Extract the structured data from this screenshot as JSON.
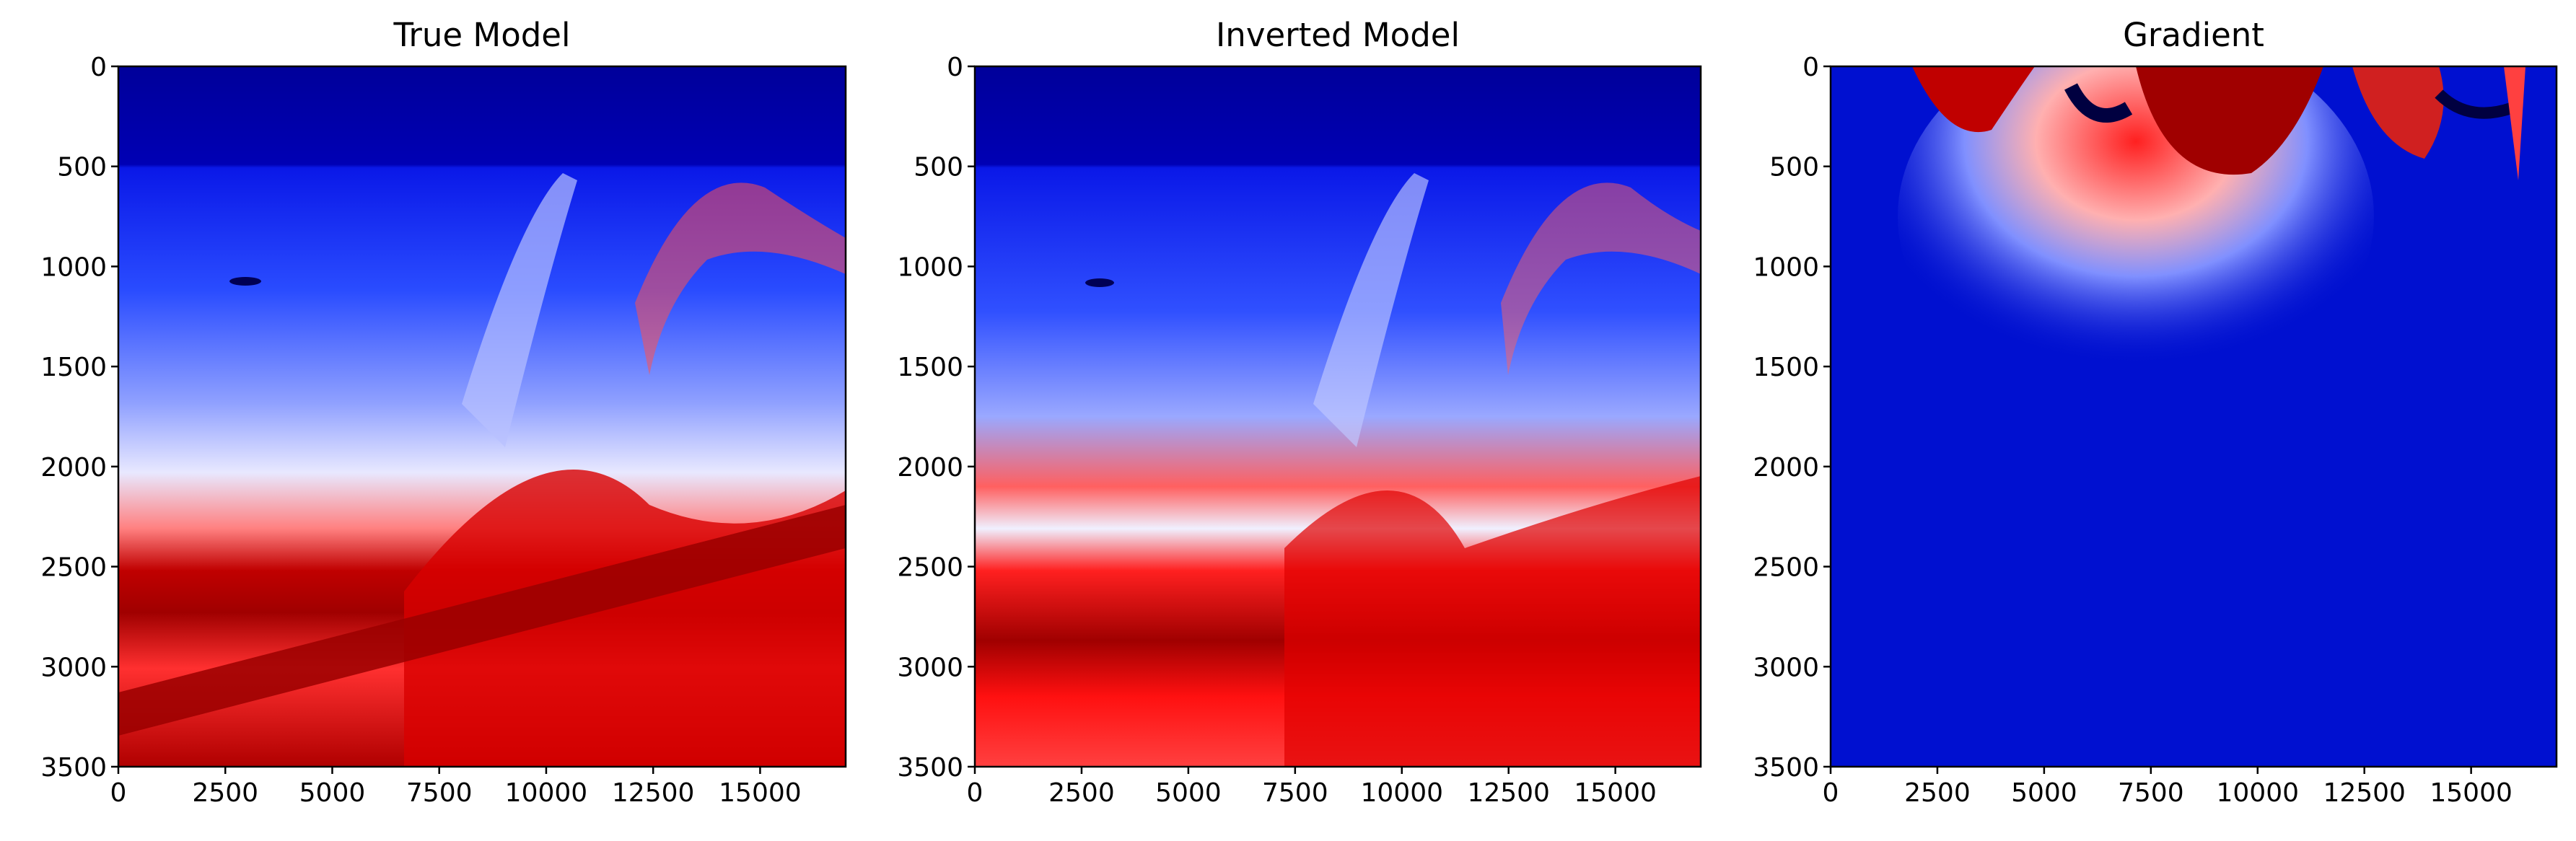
{
  "chart_data": [
    {
      "type": "heatmap",
      "title": "True Model",
      "colormap": "seismic",
      "xlim": [
        0,
        17000
      ],
      "ylim": [
        3500,
        0
      ],
      "xticks": [
        0,
        2500,
        5000,
        7500,
        10000,
        12500,
        15000
      ],
      "yticks": [
        0,
        500,
        1000,
        1500,
        2000,
        2500,
        3000,
        3500
      ],
      "xtick_labels": [
        "0",
        "2500",
        "5000",
        "7500",
        "10000",
        "12500",
        "15000"
      ],
      "ytick_labels": [
        "0",
        "500",
        "1000",
        "1500",
        "2000",
        "2500",
        "3000",
        "3500"
      ],
      "water_depth": 500
    },
    {
      "type": "heatmap",
      "title": "Inverted Model",
      "colormap": "seismic",
      "xlim": [
        0,
        17000
      ],
      "ylim": [
        3500,
        0
      ],
      "xticks": [
        0,
        2500,
        5000,
        7500,
        10000,
        12500,
        15000
      ],
      "yticks": [
        0,
        500,
        1000,
        1500,
        2000,
        2500,
        3000,
        3500
      ],
      "xtick_labels": [
        "0",
        "2500",
        "5000",
        "7500",
        "10000",
        "12500",
        "15000"
      ],
      "ytick_labels": [
        "0",
        "500",
        "1000",
        "1500",
        "2000",
        "2500",
        "3000",
        "3500"
      ],
      "water_depth": 500
    },
    {
      "type": "heatmap",
      "title": "Gradient",
      "colormap": "seismic",
      "xlim": [
        0,
        17000
      ],
      "ylim": [
        3500,
        0
      ],
      "xticks": [
        0,
        2500,
        5000,
        7500,
        10000,
        12500,
        15000
      ],
      "yticks": [
        0,
        500,
        1000,
        1500,
        2000,
        2500,
        3000,
        3500
      ],
      "xtick_labels": [
        "0",
        "2500",
        "5000",
        "7500",
        "10000",
        "12500",
        "15000"
      ],
      "ytick_labels": [
        "0",
        "500",
        "1000",
        "1500",
        "2000",
        "2500",
        "3000",
        "3500"
      ]
    }
  ]
}
